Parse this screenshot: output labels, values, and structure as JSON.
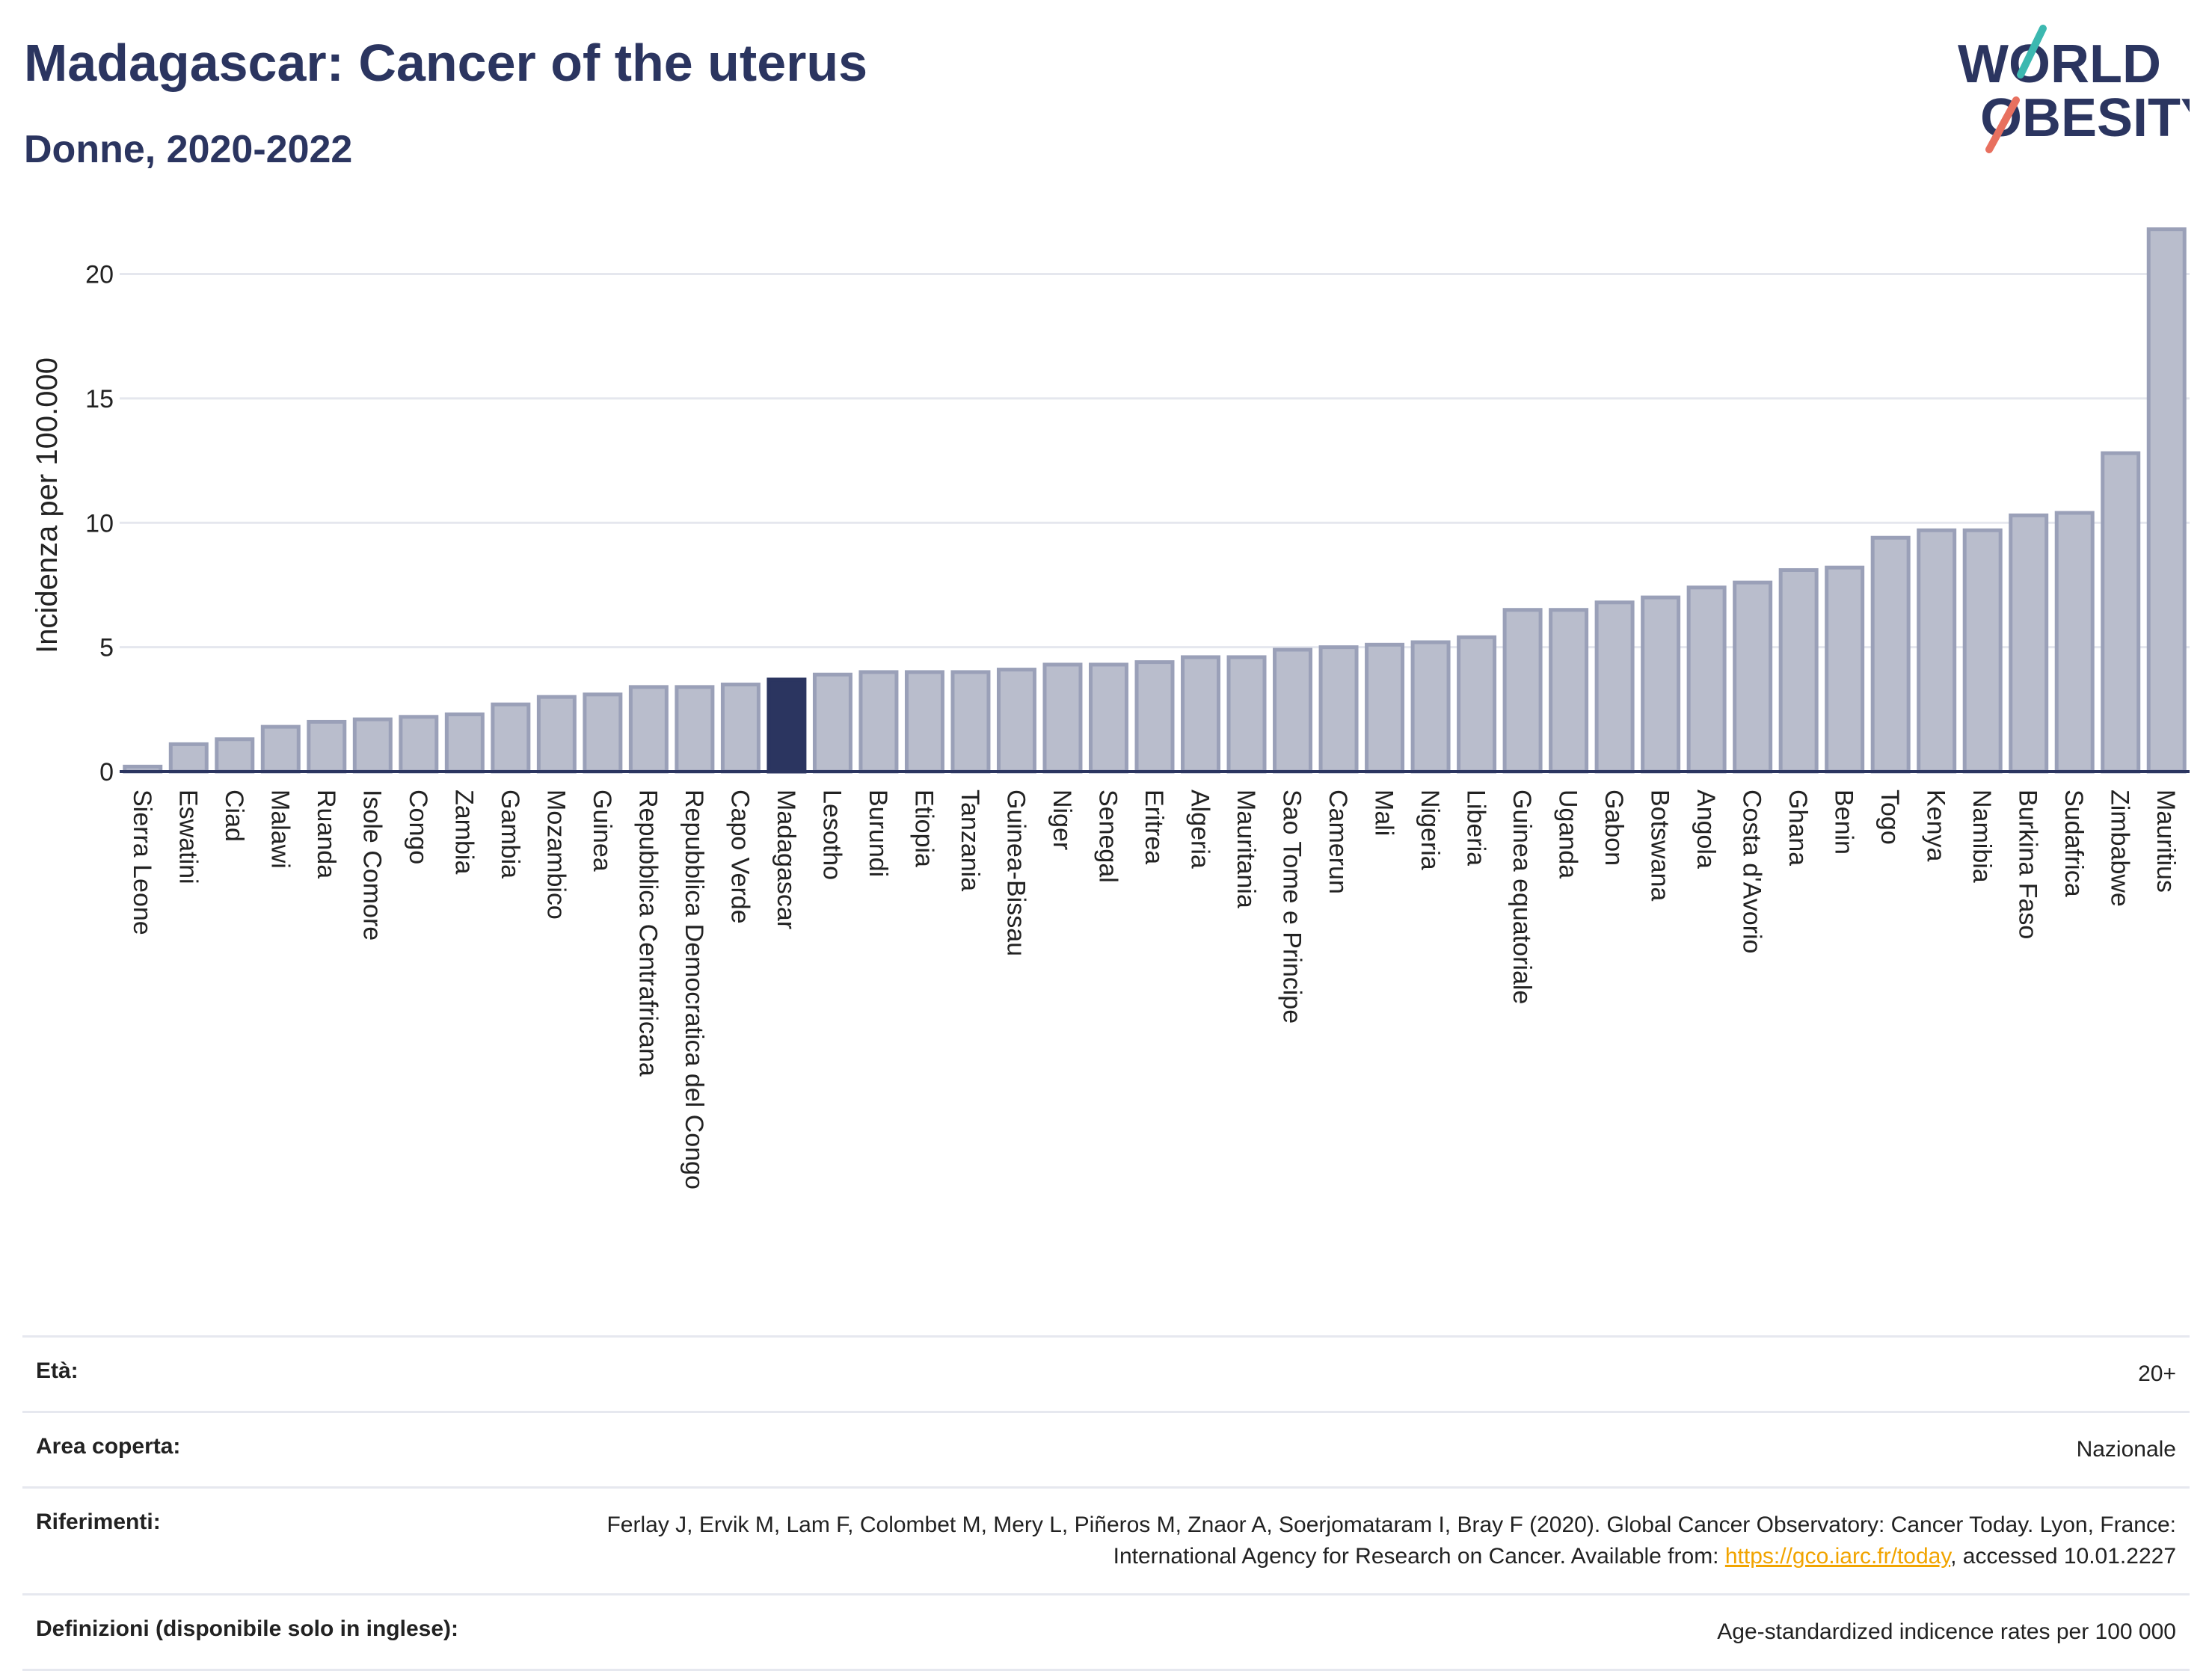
{
  "header": {
    "title": "Madagascar: Cancer of the uterus",
    "subtitle": "Donne, 2020-2022",
    "logo_line1": "WORLD",
    "logo_line2": "OBESITY"
  },
  "colors": {
    "bar": "#b9bdcc",
    "bar_stroke": "#9aa0b8",
    "highlight": "#2b3560",
    "grid": "#e5e7ee",
    "axis": "#2b3560"
  },
  "chart_data": {
    "type": "bar",
    "ylabel": "Incidenza per 100.000",
    "ylim": [
      0,
      22
    ],
    "yticks": [
      0,
      5,
      10,
      15,
      20
    ],
    "highlight": "Madagascar",
    "categories": [
      "Sierra Leone",
      "Eswatini",
      "Ciad",
      "Malawi",
      "Ruanda",
      "Isole Comore",
      "Congo",
      "Zambia",
      "Gambia",
      "Mozambico",
      "Guinea",
      "Repubblica Centrafricana",
      "Repubblica Democratica del Congo",
      "Capo Verde",
      "Madagascar",
      "Lesotho",
      "Burundi",
      "Etiopia",
      "Tanzania",
      "Guinea-Bissau",
      "Niger",
      "Senegal",
      "Eritrea",
      "Algeria",
      "Mauritania",
      "Sao Tome e Principe",
      "Camerun",
      "Mali",
      "Nigeria",
      "Liberia",
      "Guinea equatoriale",
      "Uganda",
      "Gabon",
      "Botswana",
      "Angola",
      "Costa d'Avorio",
      "Ghana",
      "Benin",
      "Togo",
      "Kenya",
      "Namibia",
      "Burkina Faso",
      "Sudafrica",
      "Zimbabwe",
      "Mauritius"
    ],
    "values": [
      0.2,
      1.1,
      1.3,
      1.8,
      2.0,
      2.1,
      2.2,
      2.3,
      2.7,
      3.0,
      3.1,
      3.4,
      3.4,
      3.5,
      3.7,
      3.9,
      4.0,
      4.0,
      4.0,
      4.1,
      4.3,
      4.3,
      4.4,
      4.6,
      4.6,
      4.9,
      5.0,
      5.1,
      5.2,
      5.4,
      6.5,
      6.5,
      6.8,
      7.0,
      7.4,
      7.6,
      8.1,
      8.2,
      9.4,
      9.7,
      9.7,
      10.3,
      10.4,
      12.8,
      21.8
    ]
  },
  "info": {
    "age_label": "Età:",
    "age_value": "20+",
    "area_label": "Area coperta:",
    "area_value": "Nazionale",
    "ref_label": "Riferimenti:",
    "ref_text_1": "Ferlay J, Ervik M, Lam F, Colombet M, Mery L, Piñeros M, Znaor A, Soerjomataram I, Bray F (2020). Global Cancer Observatory: Cancer Today. Lyon, France: International Agency for Research on Cancer. Available from: ",
    "ref_link": "https://gco.iarc.fr/today",
    "ref_text_2": ", accessed 10.01.2227",
    "def_label": "Definizioni (disponibile solo in inglese):",
    "def_value": "Age-standardized indicence rates per 100 000"
  }
}
